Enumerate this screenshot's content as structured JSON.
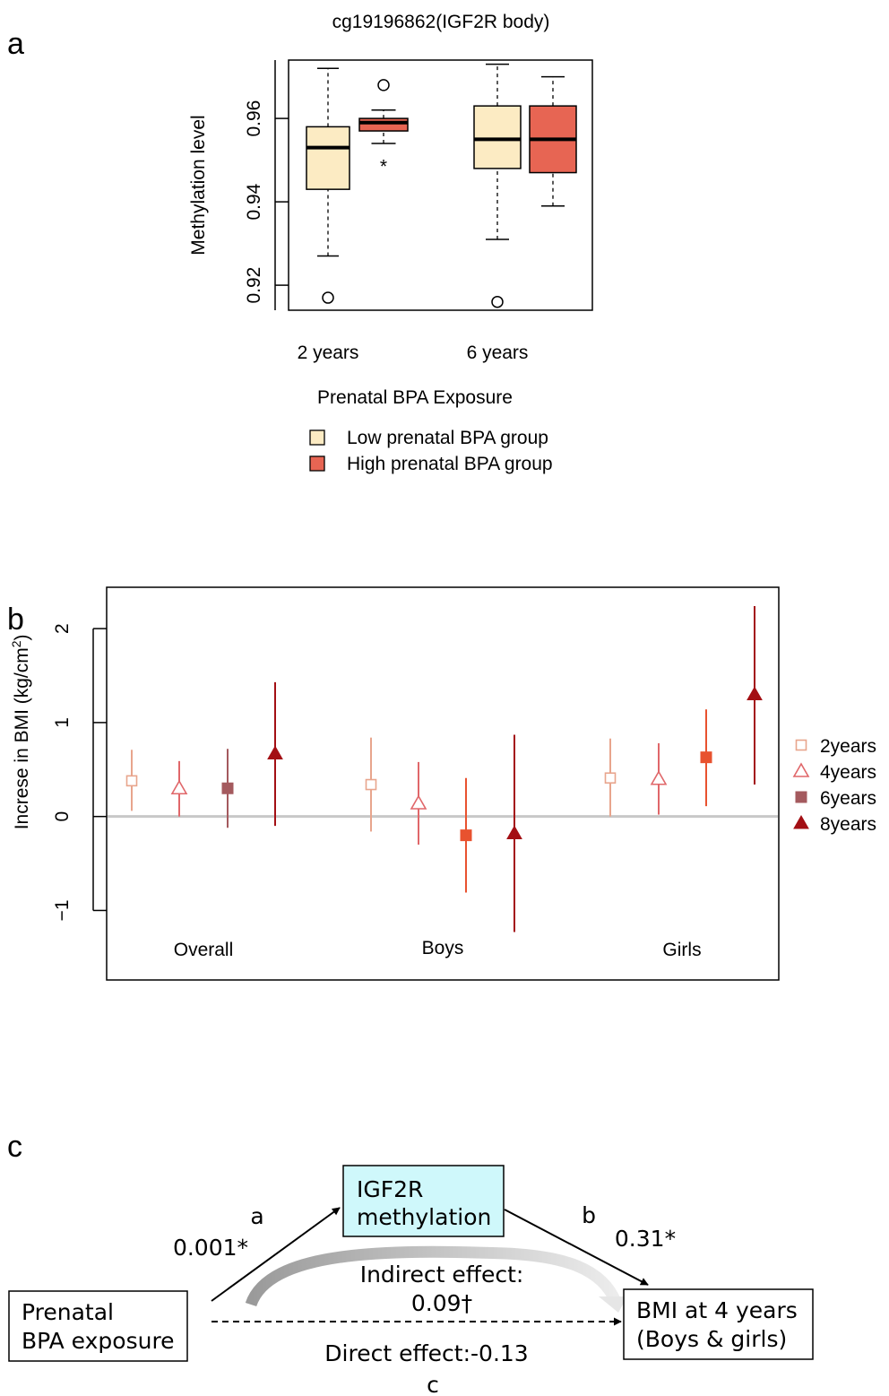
{
  "panels": {
    "a": "a",
    "b": "b",
    "c": "c"
  },
  "chart_data": [
    {
      "type": "box",
      "panel": "a",
      "title": "cg19196862(IGF2R body)",
      "xlabel": "Prenatal BPA Exposure",
      "ylabel": "Methylation level",
      "ylim": [
        0.914,
        0.974
      ],
      "yticks": [
        0.92,
        0.94,
        0.96
      ],
      "ytick_labels": [
        "0.92",
        "0.94",
        "0.96"
      ],
      "grid": false,
      "categories": [
        "2 years",
        "6 years"
      ],
      "legend_position": "bottom",
      "series": [
        {
          "name": "Low prenatal BPA group",
          "color": "#FCEBC3",
          "boxes": [
            {
              "whisker_low": 0.927,
              "q1": 0.943,
              "median": 0.953,
              "q3": 0.958,
              "whisker_high": 0.972,
              "outliers": [
                0.917
              ]
            },
            {
              "whisker_low": 0.931,
              "q1": 0.948,
              "median": 0.955,
              "q3": 0.963,
              "whisker_high": 0.973,
              "outliers": [
                0.916
              ]
            }
          ]
        },
        {
          "name": "High prenatal BPA group",
          "color": "#E76553",
          "boxes": [
            {
              "whisker_low": 0.954,
              "q1": 0.957,
              "median": 0.959,
              "q3": 0.96,
              "whisker_high": 0.962,
              "outliers": [
                0.968
              ]
            },
            {
              "whisker_low": 0.939,
              "q1": 0.947,
              "median": 0.955,
              "q3": 0.963,
              "whisker_high": 0.97,
              "outliers": []
            }
          ]
        }
      ],
      "annotations": [
        {
          "text": "*",
          "category": "2 years",
          "group": "High prenatal BPA group",
          "y": 0.95
        }
      ]
    },
    {
      "type": "errorbar",
      "panel": "b",
      "ylabel": "Increse in BMI (kg/cm",
      "ylabel_superscript": "2",
      "ylabel_suffix": ")",
      "ylim": [
        -1.74,
        2.44
      ],
      "yticks": [
        -1,
        0,
        1,
        2
      ],
      "ytick_labels": [
        "−1",
        "0",
        "1",
        "2"
      ],
      "reference_line": 0,
      "grid": false,
      "categories": [
        "Overall",
        "Boys",
        "Girls"
      ],
      "legend_position": "right",
      "series": [
        {
          "name": "2years",
          "marker": "open-square",
          "color": "#E8A58D",
          "points": [
            {
              "category": "Overall",
              "estimate": 0.38,
              "lower": 0.06,
              "upper": 0.71
            },
            {
              "category": "Boys",
              "estimate": 0.34,
              "lower": -0.16,
              "upper": 0.84
            },
            {
              "category": "Girls",
              "estimate": 0.41,
              "lower": 0.0,
              "upper": 0.83
            }
          ]
        },
        {
          "name": "4years",
          "marker": "open-triangle",
          "color": "#E0676A",
          "points": [
            {
              "category": "Overall",
              "estimate": 0.3,
              "lower": 0.0,
              "upper": 0.59
            },
            {
              "category": "Boys",
              "estimate": 0.14,
              "lower": -0.3,
              "upper": 0.58
            },
            {
              "category": "Girls",
              "estimate": 0.4,
              "lower": 0.02,
              "upper": 0.78
            }
          ]
        },
        {
          "name": "6years",
          "marker": "filled-square",
          "legend_color": "#A45A5E",
          "colors": {
            "Overall": "#A45A5E",
            "Boys": "#E8522F",
            "Girls": "#E8522F"
          },
          "points": [
            {
              "category": "Overall",
              "estimate": 0.3,
              "lower": -0.12,
              "upper": 0.72
            },
            {
              "category": "Boys",
              "estimate": -0.2,
              "lower": -0.81,
              "upper": 0.41
            },
            {
              "category": "Girls",
              "estimate": 0.63,
              "lower": 0.11,
              "upper": 1.14
            }
          ]
        },
        {
          "name": "8years",
          "marker": "filled-triangle",
          "color": "#A30F14",
          "points": [
            {
              "category": "Overall",
              "estimate": 0.67,
              "lower": -0.1,
              "upper": 1.43
            },
            {
              "category": "Boys",
              "estimate": -0.18,
              "lower": -1.23,
              "upper": 0.87
            },
            {
              "category": "Girls",
              "estimate": 1.3,
              "lower": 0.34,
              "upper": 2.24
            }
          ]
        }
      ]
    }
  ],
  "mediation": {
    "mediator": [
      "IGF2R",
      "methylation"
    ],
    "mediator_color": "#CFF8FB",
    "exposure": [
      "Prenatal",
      "BPA exposure"
    ],
    "outcome": [
      "BMI at 4 years",
      "(Boys & girls)"
    ],
    "path_a_label": "a",
    "path_a_value": "0.001*",
    "path_b_label": "b",
    "path_b_value": "0.31*",
    "indirect_label": "Indirect effect:",
    "indirect_value": "0.09†",
    "direct_label": "Direct effect:-0.13",
    "path_c_label": "c"
  }
}
